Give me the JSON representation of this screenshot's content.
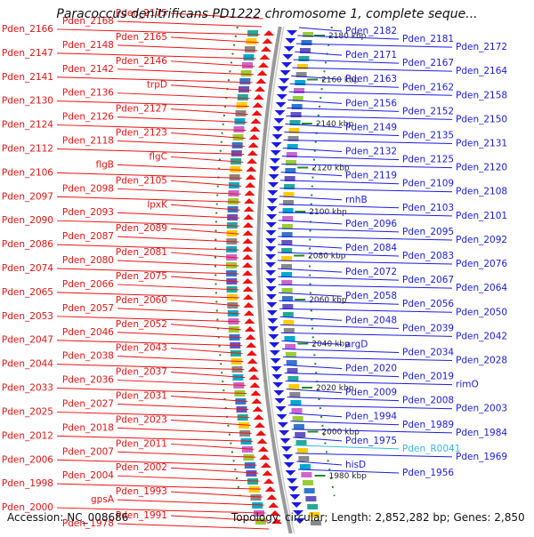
{
  "title": "Paracoccus denitrificans PD1222 chromosome 1, complete seque...",
  "footer": {
    "accession": "Accession: NC_008686",
    "summary": "Topology: circular; Length: 2,852,282 bp; Genes: 2,850"
  },
  "colors": {
    "forward": "#ee1111",
    "reverse": "#1a1ae6",
    "rna": "#33bbdd",
    "tick": "#228b22",
    "backbone": "#999999"
  },
  "kbp_ticks": [
    "2180 kbp",
    "2160 kbp",
    "2140 kbp",
    "2120 kbp",
    "2100 kbp",
    "2080 kbp",
    "2060 kbp",
    "2040 kbp",
    "2020 kbp",
    "2000 kbp",
    "1980 kbp"
  ],
  "left_labels": [
    "Pden_2175",
    "Pden_2168",
    "Pden_2166",
    "Pden_2165",
    "Pden_2148",
    "Pden_2147",
    "Pden_2146",
    "Pden_2142",
    "Pden_2141",
    "trpD",
    "Pden_2136",
    "Pden_2130",
    "Pden_2127",
    "Pden_2126",
    "Pden_2124",
    "Pden_2123",
    "Pden_2118",
    "Pden_2112",
    "flgC",
    "flgB",
    "Pden_2106",
    "Pden_2105",
    "Pden_2098",
    "Pden_2097",
    "lpxK",
    "Pden_2093",
    "Pden_2090",
    "Pden_2089",
    "Pden_2087",
    "Pden_2086",
    "Pden_2081",
    "Pden_2080",
    "Pden_2074",
    "Pden_2075",
    "Pden_2066",
    "Pden_2065",
    "Pden_2060",
    "Pden_2057",
    "Pden_2053",
    "Pden_2052",
    "Pden_2046",
    "Pden_2047",
    "Pden_2043",
    "Pden_2038",
    "Pden_2044",
    "Pden_2037",
    "Pden_2036",
    "Pden_2033",
    "Pden_2031",
    "Pden_2027",
    "Pden_2025",
    "Pden_2023",
    "Pden_2018",
    "Pden_2012",
    "Pden_2011",
    "Pden_2007",
    "Pden_2006",
    "Pden_2002",
    "Pden_2004",
    "Pden_1998",
    "Pden_1993",
    "gpsA",
    "Pden_2000",
    "Pden_1991",
    "Pden_1978"
  ],
  "right_labels": [
    "Pden_2182",
    "Pden_2181",
    "Pden_2172",
    "Pden_2171",
    "Pden_2167",
    "Pden_2164",
    "Pden_2163",
    "Pden_2162",
    "Pden_2158",
    "Pden_2156",
    "Pden_2152",
    "Pden_2150",
    "Pden_2149",
    "Pden_2135",
    "Pden_2131",
    "Pden_2132",
    "Pden_2125",
    "Pden_2120",
    "Pden_2119",
    "Pden_2109",
    "Pden_2108",
    "rnhB",
    "Pden_2103",
    "Pden_2101",
    "Pden_2096",
    "Pden_2095",
    "Pden_2092",
    "Pden_2084",
    "Pden_2083",
    "Pden_2076",
    "Pden_2072",
    "Pden_2067",
    "Pden_2064",
    "Pden_2058",
    "Pden_2056",
    "Pden_2050",
    "Pden_2048",
    "Pden_2039",
    "Pden_2042",
    "argD",
    "Pden_2034",
    "Pden_2028",
    "Pden_2020",
    "Pden_2019",
    "rimO",
    "Pden_2009",
    "Pden_2008",
    "Pden_2003",
    "Pden_1994",
    "Pden_1989",
    "Pden_1984",
    "Pden_1975",
    "Pden_R0041",
    "Pden_1969",
    "hisD",
    "Pden_1956"
  ]
}
